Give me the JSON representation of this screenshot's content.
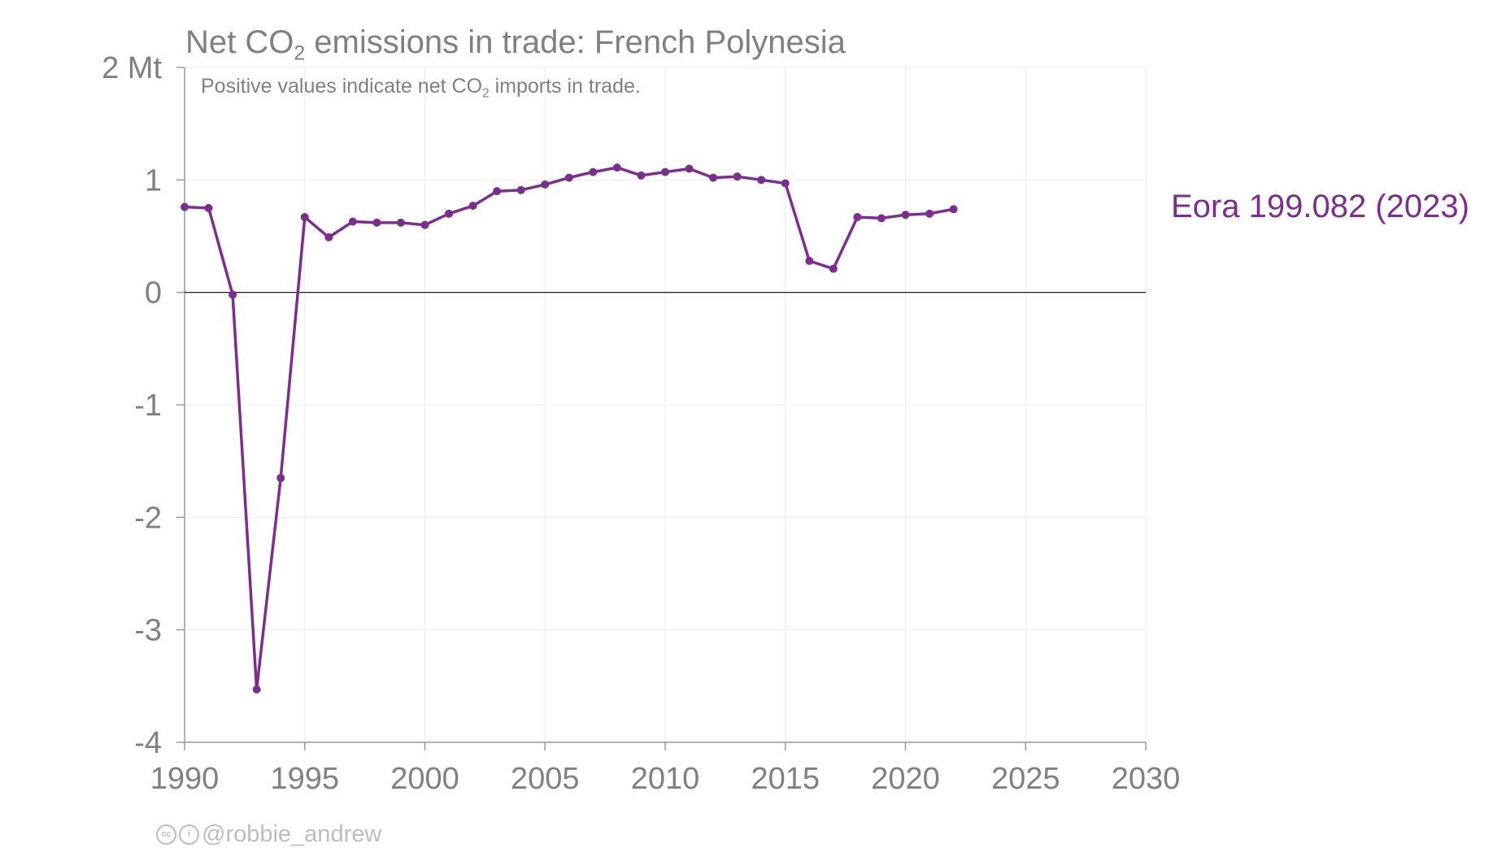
{
  "title": {
    "prefix": "Net CO",
    "subscript": "2",
    "suffix": " emissions in trade: French Polynesia"
  },
  "subtitle": {
    "prefix": "Positive values indicate net CO",
    "subscript": "2",
    "suffix": " imports in trade."
  },
  "series_label": "Eora 199.082 (2023)",
  "credit": {
    "cc_icon": "cc-icon",
    "by_icon": "attribution-icon",
    "handle": "@robbie_andrew"
  },
  "colors": {
    "series": "#7b2e8e",
    "axis_text": "#808080",
    "grid": "#ebebeb",
    "zero_line": "#000000"
  },
  "chart_data": {
    "type": "line",
    "title": "Net CO2 emissions in trade: French Polynesia",
    "subtitle": "Positive values indicate net CO2 imports in trade.",
    "xlabel": "",
    "ylabel": "",
    "unit_label": "Mt",
    "xlim": [
      1990,
      2030
    ],
    "ylim": [
      -4,
      2
    ],
    "x_ticks": [
      1990,
      1995,
      2000,
      2005,
      2010,
      2015,
      2020,
      2025,
      2030
    ],
    "x_tick_labels": [
      "1990",
      "1995",
      "2000",
      "2005",
      "2010",
      "2015",
      "2020",
      "2025",
      "2030"
    ],
    "y_ticks": [
      2,
      1,
      0,
      -1,
      -2,
      -3,
      -4
    ],
    "y_tick_labels": [
      "2 Mt",
      "1",
      "0",
      "-1",
      "-2",
      "-3",
      "-4"
    ],
    "grid": true,
    "series": [
      {
        "name": "Eora 199.082 (2023)",
        "x": [
          1990,
          1991,
          1992,
          1993,
          1994,
          1995,
          1996,
          1997,
          1998,
          1999,
          2000,
          2001,
          2002,
          2003,
          2004,
          2005,
          2006,
          2007,
          2008,
          2009,
          2010,
          2011,
          2012,
          2013,
          2014,
          2015,
          2016,
          2017,
          2018,
          2019,
          2020,
          2021,
          2022
        ],
        "values": [
          0.76,
          0.75,
          -0.02,
          -3.53,
          -1.65,
          0.67,
          0.49,
          0.63,
          0.62,
          0.62,
          0.6,
          0.7,
          0.77,
          0.9,
          0.91,
          0.96,
          1.02,
          1.07,
          1.11,
          1.04,
          1.07,
          1.1,
          1.02,
          1.03,
          1.0,
          0.97,
          0.28,
          0.21,
          0.67,
          0.66,
          0.69,
          0.7,
          0.74
        ]
      }
    ]
  }
}
